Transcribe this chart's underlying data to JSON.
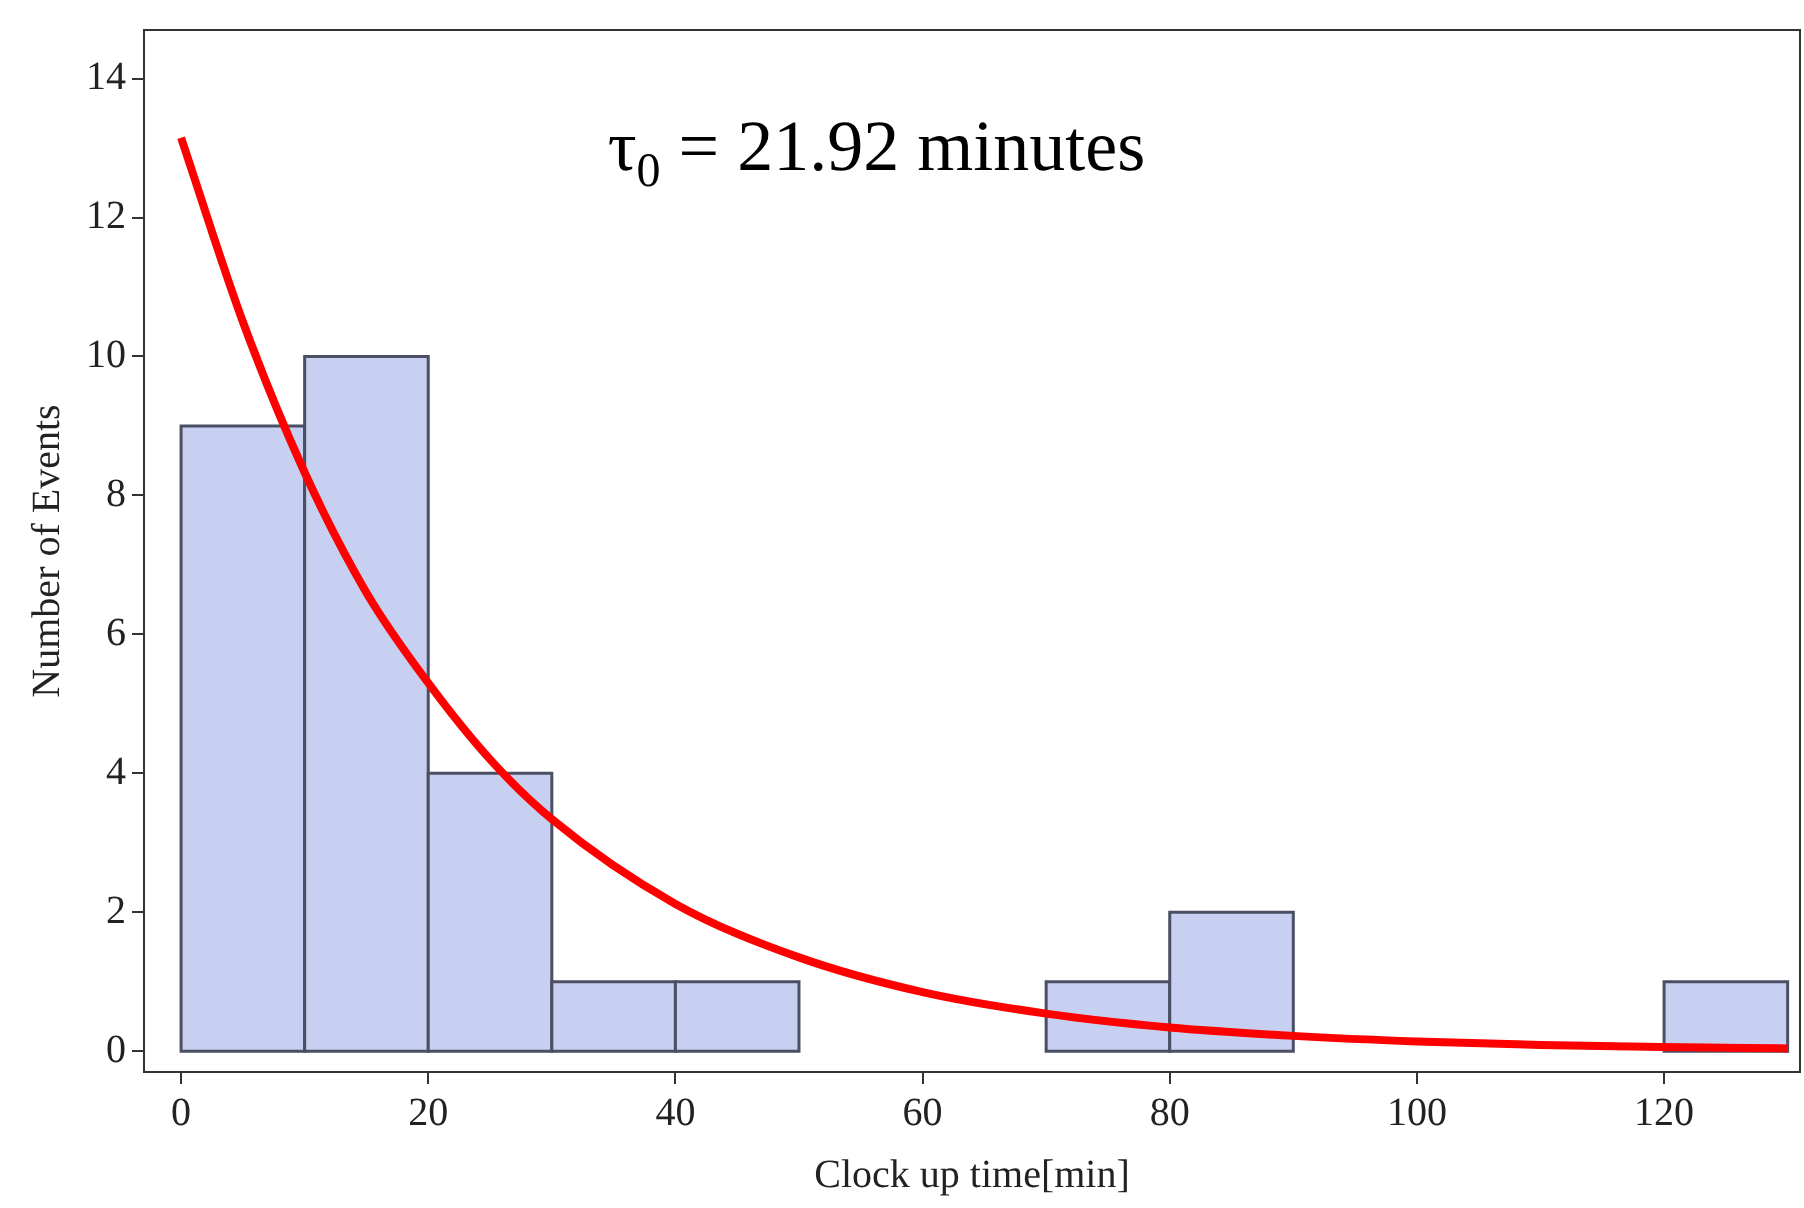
{
  "chart_data": {
    "type": "histogram",
    "xlabel": "Clock up time[min]",
    "ylabel": "Number of Events",
    "annotations": [
      "τ$_{0}$ = 21.92 minutes"
    ],
    "bins": [
      0,
      10,
      20,
      30,
      40,
      50,
      60,
      70,
      80,
      90,
      100,
      110,
      120,
      130
    ],
    "values": [
      9,
      10,
      4,
      1,
      1,
      0,
      0,
      1,
      2,
      0,
      0,
      0,
      1
    ],
    "color": "#c8d0f2",
    "series": [
      {
        "type": "line",
        "color": "#ff0000",
        "x": [
          0,
          5,
          10,
          15,
          20,
          25,
          30,
          40,
          50,
          60,
          70,
          80,
          90,
          100,
          110,
          120,
          130
        ],
        "values": [
          13.15,
          10.5,
          8.33,
          6.6,
          5.3,
          4.2,
          3.34,
          2.12,
          1.35,
          0.85,
          0.54,
          0.34,
          0.22,
          0.14,
          0.09,
          0.06,
          0.04
        ]
      }
    ],
    "xlim": [
      -3,
      131
    ],
    "ylim": [
      -0.3,
      14.7
    ],
    "xticks": [
      0,
      20,
      40,
      60,
      80,
      100,
      120
    ],
    "yticks": [
      0,
      2,
      4,
      6,
      8,
      10,
      12,
      14
    ],
    "grid": false,
    "legend": false
  }
}
